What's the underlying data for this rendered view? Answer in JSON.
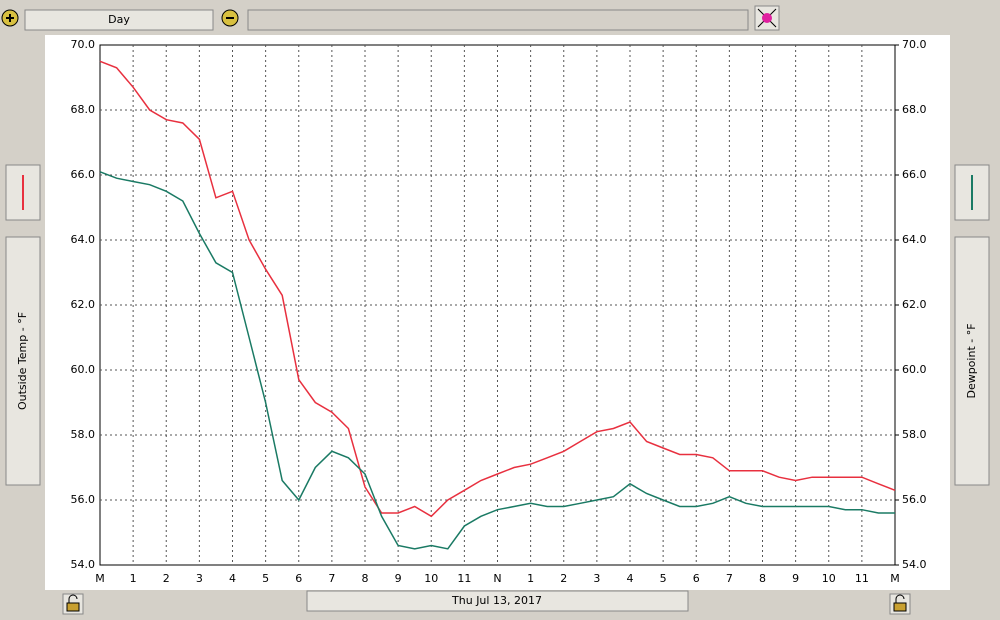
{
  "toolbar": {
    "period": "Day"
  },
  "chart_data": {
    "type": "line",
    "xlabel": "Thu Jul 13, 2017",
    "ylabel": "Outside Temp - °F",
    "y2label": "Dewpoint - °F",
    "x": [
      0,
      0.5,
      1,
      1.5,
      2,
      2.5,
      3,
      3.5,
      4,
      4.5,
      5,
      5.5,
      6,
      6.5,
      7,
      7.5,
      8,
      8.5,
      9,
      9.5,
      10,
      10.5,
      11,
      11.5,
      12,
      12.5,
      13,
      13.5,
      14,
      14.5,
      15,
      15.5,
      16,
      16.5,
      17,
      17.5,
      18,
      18.5,
      19,
      19.5,
      20,
      20.5,
      21,
      21.5,
      22,
      22.5,
      23,
      23.5,
      24
    ],
    "series": [
      {
        "name": "Outside Temp",
        "color": "#e8303f",
        "axis": "y",
        "values": [
          69.5,
          69.3,
          68.7,
          68.0,
          67.7,
          67.6,
          67.1,
          65.3,
          65.5,
          64.0,
          63.1,
          62.3,
          59.7,
          59.0,
          58.7,
          58.2,
          56.4,
          55.6,
          55.6,
          55.8,
          55.5,
          56.0,
          56.3,
          56.6,
          56.8,
          57.0,
          57.1,
          57.3,
          57.5,
          57.8,
          58.1,
          58.2,
          58.4,
          57.8,
          57.6,
          57.4,
          57.4,
          57.3,
          56.9,
          56.9,
          56.9,
          56.7,
          56.6,
          56.7,
          56.7,
          56.7,
          56.7,
          56.5,
          56.3
        ]
      },
      {
        "name": "Dewpoint",
        "color": "#1a7a64",
        "axis": "y2",
        "values": [
          66.1,
          65.9,
          65.8,
          65.7,
          65.5,
          65.2,
          64.2,
          63.3,
          63.0,
          61.0,
          59.0,
          56.6,
          56.0,
          57.0,
          57.5,
          57.3,
          56.8,
          55.5,
          54.6,
          54.5,
          54.6,
          54.5,
          55.2,
          55.5,
          55.7,
          55.8,
          55.9,
          55.8,
          55.8,
          55.9,
          56.0,
          56.1,
          56.5,
          56.2,
          56.0,
          55.8,
          55.8,
          55.9,
          56.1,
          55.9,
          55.8,
          55.8,
          55.8,
          55.8,
          55.8,
          55.7,
          55.7,
          55.6,
          55.6
        ]
      }
    ],
    "xlim": [
      0,
      24
    ],
    "xticks": [
      {
        "value": 0,
        "label": "M"
      },
      1,
      2,
      3,
      4,
      5,
      6,
      7,
      8,
      9,
      10,
      11,
      {
        "value": 12,
        "label": "N"
      },
      {
        "value": 13,
        "label": "1"
      },
      {
        "value": 14,
        "label": "2"
      },
      {
        "value": 15,
        "label": "3"
      },
      {
        "value": 16,
        "label": "4"
      },
      {
        "value": 17,
        "label": "5"
      },
      {
        "value": 18,
        "label": "6"
      },
      {
        "value": 19,
        "label": "7"
      },
      {
        "value": 20,
        "label": "8"
      },
      {
        "value": 21,
        "label": "9"
      },
      {
        "value": 22,
        "label": "10"
      },
      {
        "value": 23,
        "label": "11"
      },
      {
        "value": 24,
        "label": "M"
      }
    ],
    "ylim": [
      54,
      70
    ],
    "yticks": [
      {
        "value": 54,
        "label": "54.0"
      },
      {
        "value": 56,
        "label": "56.0"
      },
      {
        "value": 58,
        "label": "58.0"
      },
      {
        "value": 60,
        "label": "60.0"
      },
      {
        "value": 62,
        "label": "62.0"
      },
      {
        "value": 64,
        "label": "64.0"
      },
      {
        "value": 66,
        "label": "66.0"
      },
      {
        "value": 68,
        "label": "68.0"
      },
      {
        "value": 70,
        "label": "70.0"
      }
    ],
    "y2lim": [
      54,
      70
    ],
    "y2ticks": [
      {
        "value": 54,
        "label": "54.0"
      },
      {
        "value": 56,
        "label": "56.0"
      },
      {
        "value": 58,
        "label": "58.0"
      },
      {
        "value": 60,
        "label": "60.0"
      },
      {
        "value": 62,
        "label": "62.0"
      },
      {
        "value": 64,
        "label": "64.0"
      },
      {
        "value": 66,
        "label": "66.0"
      },
      {
        "value": 68,
        "label": "68.0"
      },
      {
        "value": 70,
        "label": "70.0"
      }
    ],
    "grid": true
  }
}
